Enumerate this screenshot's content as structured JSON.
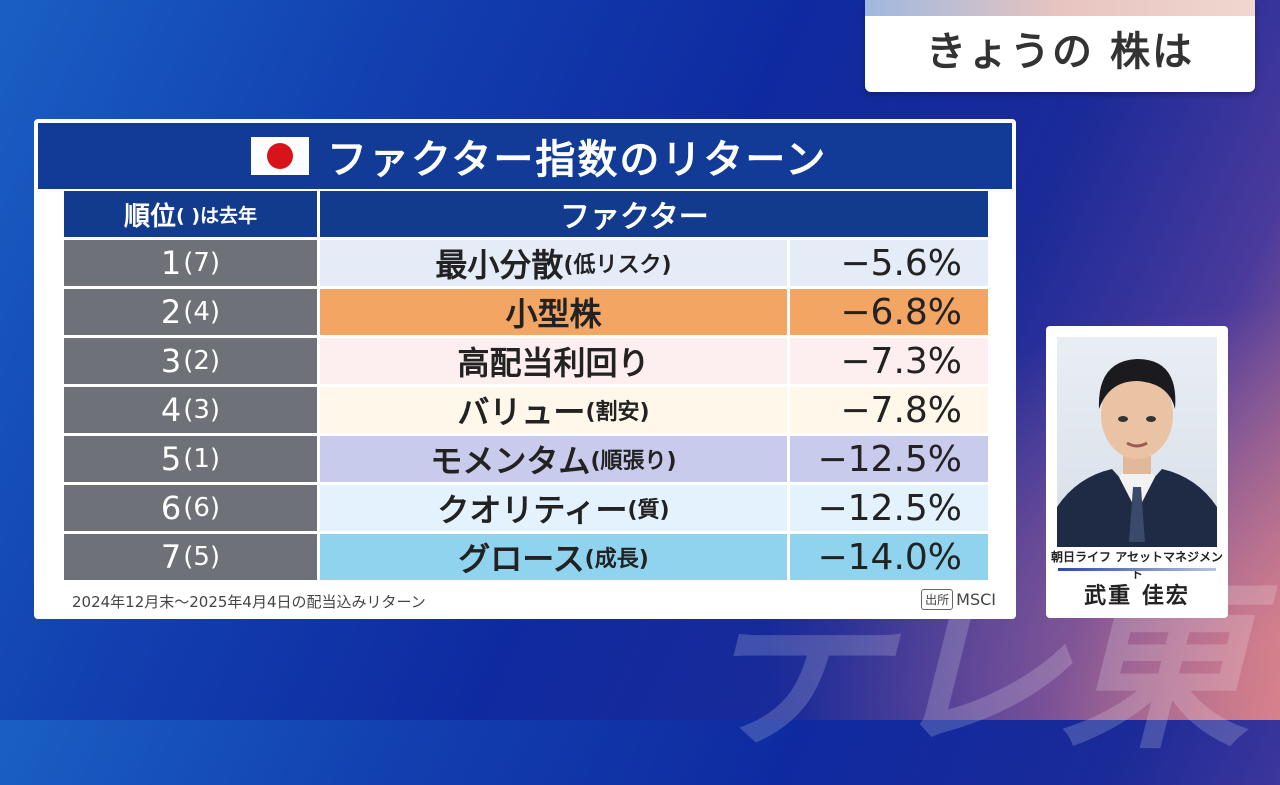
{
  "corner": {
    "title": "きょうの 株は"
  },
  "panel": {
    "title": "ファクター指数のリターン",
    "flag_icon": "japan-flag-icon",
    "header_rank_main": "順位",
    "header_rank_note": "( )は去年",
    "header_factor": "ファクター",
    "rows": [
      {
        "rank": "1",
        "prev": "(7)",
        "name": "最小分散",
        "sub": "(低リスク)",
        "value": "−5.6%",
        "color": "#e4ecf8"
      },
      {
        "rank": "2",
        "prev": "(4)",
        "name": "小型株",
        "sub": "",
        "value": "−6.8%",
        "color": "#f3a564"
      },
      {
        "rank": "3",
        "prev": "(2)",
        "name": "高配当利回り",
        "sub": "",
        "value": "−7.3%",
        "color": "#fdeeef"
      },
      {
        "rank": "4",
        "prev": "(3)",
        "name": "バリュー",
        "sub": "(割安)",
        "value": "−7.8%",
        "color": "#fef7ea"
      },
      {
        "rank": "5",
        "prev": "(1)",
        "name": "モメンタム",
        "sub": "(順張り)",
        "value": "−12.5%",
        "color": "#c8cbeb"
      },
      {
        "rank": "6",
        "prev": "(6)",
        "name": "クオリティー",
        "sub": "(質)",
        "value": "−12.5%",
        "color": "#e3f2fc"
      },
      {
        "rank": "7",
        "prev": "(5)",
        "name": "グロース",
        "sub": "(成長)",
        "value": "−14.0%",
        "color": "#8fd3ee"
      }
    ],
    "footnote": "2024年12月末〜2025年4月4日の配当込みリターン",
    "source_label": "出所",
    "source_name": "MSCI"
  },
  "person": {
    "affiliation": "朝日ライフ アセットマネジメント",
    "name": "武重 佳宏"
  },
  "watermark": "テレ東"
}
